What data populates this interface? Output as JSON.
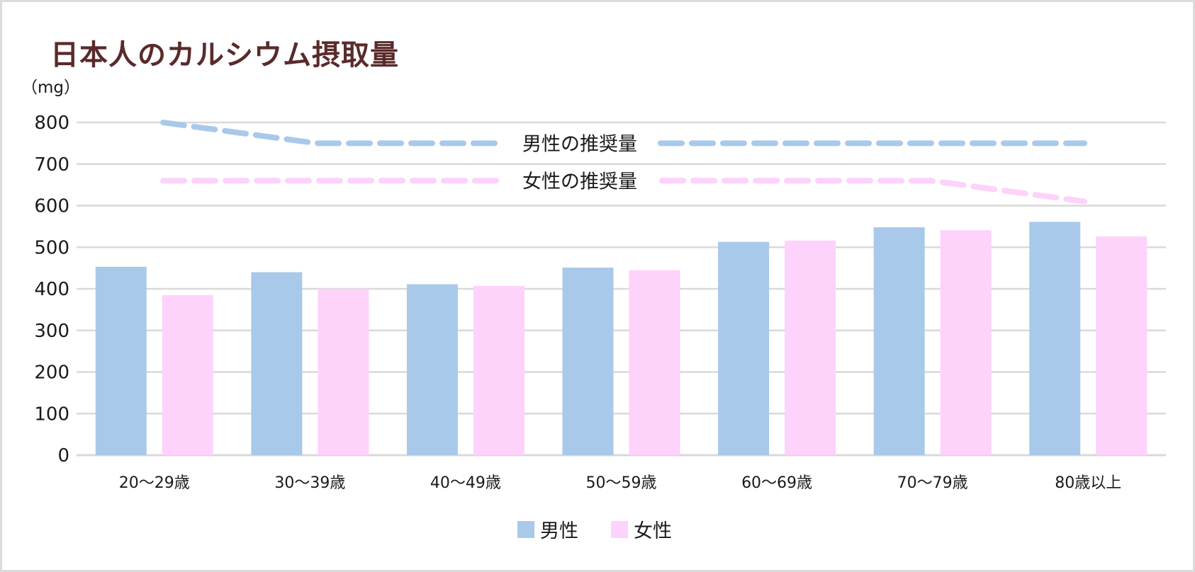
{
  "chart_data": {
    "type": "bar",
    "title": "日本人のカルシウム摂取量",
    "unit_label": "（mg）",
    "ylim": [
      0,
      800
    ],
    "yticks": [
      "0",
      "100",
      "200",
      "300",
      "400",
      "500",
      "600",
      "700",
      "800"
    ],
    "categories": [
      "20〜29歳",
      "30〜39歳",
      "40〜49歳",
      "50〜59歳",
      "60〜69歳",
      "70〜79歳",
      "80歳以上"
    ],
    "grid": true,
    "legend_position": "bottom",
    "series": [
      {
        "name": "男性",
        "color": "#a9c9eb",
        "values": [
          453,
          440,
          411,
          451,
          513,
          548,
          561
        ]
      },
      {
        "name": "女性",
        "color": "#fdd2fb",
        "values": [
          385,
          400,
          407,
          445,
          516,
          541,
          526
        ]
      }
    ],
    "reference_lines": [
      {
        "label": "男性の推奨量",
        "color": "#a9c9eb",
        "values": [
          800,
          750,
          750,
          750,
          750,
          750,
          750
        ]
      },
      {
        "label": "女性の推奨量",
        "color": "#fdd2fb",
        "values": [
          660,
          660,
          660,
          660,
          660,
          660,
          610
        ]
      }
    ]
  }
}
